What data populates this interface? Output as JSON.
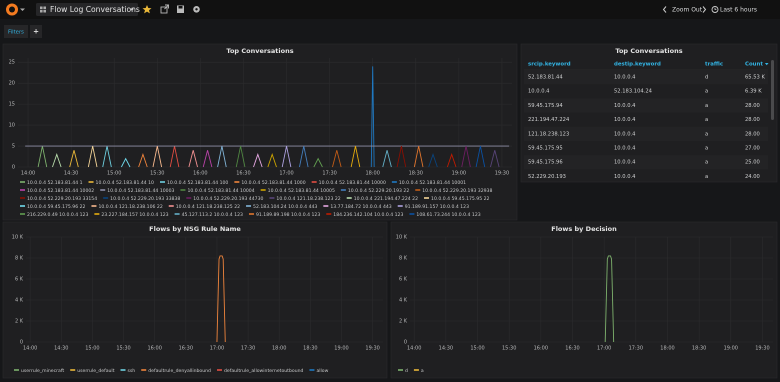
{
  "header": {
    "title": "Flow Log Conversations",
    "zoom_out": "Zoom Out",
    "time_range": "Last 6 hours"
  },
  "filters": {
    "label": "Filters",
    "add": "+"
  },
  "panels": [
    {
      "title": "Top Conversations",
      "type": "line",
      "xlim": [
        "13:53",
        "19:37"
      ],
      "xticks": [
        "14:00",
        "14:30",
        "15:00",
        "15:30",
        "16:00",
        "16:30",
        "17:00",
        "17:30",
        "18:00",
        "18:30",
        "19:00",
        "19:30"
      ],
      "ylim": [
        0,
        26
      ],
      "yticks": [
        0,
        5,
        10,
        15,
        20,
        25
      ],
      "grid": true,
      "series": [
        {
          "name": "10.0.0.4 52.183.81.44 1",
          "color": "#7EB26D",
          "x": [
            "14:07",
            "14:10",
            "14:13"
          ],
          "values": [
            0,
            5,
            0
          ]
        },
        {
          "name": "10.0.0.4 52.183.81.44 10",
          "color": "#EAB839",
          "x": [
            "14:29",
            "14:32",
            "14:35"
          ],
          "values": [
            0,
            4,
            0
          ]
        },
        {
          "name": "10.0.0.4 52.183.81.44 100",
          "color": "#6ED0E0",
          "x": [
            "14:52",
            "14:55",
            "14:58"
          ],
          "values": [
            0,
            5,
            0
          ]
        },
        {
          "name": "10.0.0.4 52.183.81.44 1000",
          "color": "#EF843C",
          "x": [
            "15:17",
            "15:20",
            "15:23"
          ],
          "values": [
            0,
            3,
            0
          ]
        },
        {
          "name": "10.0.0.4 52.183.81.44 10000",
          "color": "#E24D42",
          "x": [
            "15:39",
            "15:42",
            "15:45"
          ],
          "values": [
            0,
            5,
            0
          ]
        },
        {
          "name": "10.0.0.4 52.183.81.44 10001",
          "color": "#1F78C1",
          "x": [
            "17:59",
            "18:00",
            "18:01"
          ],
          "values": [
            0,
            24,
            0
          ]
        },
        {
          "name": "10.0.0.4 52.183.81.44 10002",
          "color": "#BA43A9",
          "x": [
            "16:02",
            "16:05",
            "16:08"
          ],
          "values": [
            0,
            4,
            0
          ]
        },
        {
          "name": "10.0.0.4 52.183.81.44 10003",
          "color": "#8F8FA8",
          "x": [
            "13:58",
            "19:35"
          ],
          "values": [
            5,
            5
          ]
        },
        {
          "name": "10.0.0.4 52.183.81.44 10004",
          "color": "#508642",
          "x": [
            "16:25",
            "16:28",
            "16:31"
          ],
          "values": [
            0,
            5,
            0
          ]
        },
        {
          "name": "10.0.0.4 52.183.81.44 10005",
          "color": "#CCA300",
          "x": [
            "16:47",
            "16:50",
            "16:53"
          ],
          "values": [
            0,
            3,
            0
          ]
        },
        {
          "name": "10.0.0.4 52.229.20.193 22",
          "color": "#447EBC",
          "x": [
            "17:09",
            "17:12",
            "17:15"
          ],
          "values": [
            0,
            5,
            0
          ]
        },
        {
          "name": "10.0.0.4 52.229.20.193 32938",
          "color": "#C15C17",
          "x": [
            "17:32",
            "17:35",
            "17:38"
          ],
          "values": [
            0,
            4,
            0
          ]
        },
        {
          "name": "10.0.0.4 52.229.20.193 33154",
          "color": "#890F02",
          "x": [
            "18:17",
            "18:20",
            "18:23"
          ],
          "values": [
            0,
            5,
            0
          ]
        },
        {
          "name": "10.0.0.4 52.229.20.193 33838",
          "color": "#0A437C",
          "x": [
            "18:39",
            "18:42",
            "18:45"
          ],
          "values": [
            0,
            3,
            0
          ]
        },
        {
          "name": "10.0.0.4 52.229.20.193 44730",
          "color": "#6D1F62",
          "x": [
            "19:02",
            "19:05",
            "19:08"
          ],
          "values": [
            0,
            5,
            0
          ]
        },
        {
          "name": "10.0.0.4 121.18.238.123 22",
          "color": "#584477",
          "x": [
            "19:22",
            "19:25",
            "19:28"
          ],
          "values": [
            0,
            4,
            0
          ]
        },
        {
          "name": "10.0.0.4 221.194.47.224 22",
          "color": "#B7DBAB",
          "x": [
            "14:17",
            "14:20",
            "14:23"
          ],
          "values": [
            0,
            3,
            0
          ]
        },
        {
          "name": "10.0.0.4 59.45.175.95 22",
          "color": "#F4D598",
          "x": [
            "14:42",
            "14:45",
            "14:48"
          ],
          "values": [
            0,
            5,
            0
          ]
        },
        {
          "name": "10.0.0.4 59.45.175.96 22",
          "color": "#70DBED",
          "x": [
            "15:05",
            "15:08",
            "15:11"
          ],
          "values": [
            0,
            2,
            0
          ]
        },
        {
          "name": "10.0.0.4 121.18.238.106 22",
          "color": "#F9BA8F",
          "x": [
            "15:27",
            "15:30",
            "15:33"
          ],
          "values": [
            0,
            5,
            0
          ]
        },
        {
          "name": "10.0.0.4 121.18.238.125 22",
          "color": "#F29191",
          "x": [
            "15:52",
            "15:55",
            "15:58"
          ],
          "values": [
            0,
            4,
            0
          ]
        },
        {
          "name": "52.183.104.24 10.0.0.4 443",
          "color": "#82B5D8",
          "x": [
            "16:12",
            "16:15",
            "16:18"
          ],
          "values": [
            0,
            5,
            0
          ]
        },
        {
          "name": "13.77.184.72 10.0.0.4 443",
          "color": "#E5A8E2",
          "x": [
            "16:37",
            "16:40",
            "16:43"
          ],
          "values": [
            0,
            3,
            0
          ]
        },
        {
          "name": "91.189.91.157 10.0.0.4 123",
          "color": "#AEA2E0",
          "x": [
            "16:57",
            "17:00",
            "17:03"
          ],
          "values": [
            0,
            5,
            0
          ]
        },
        {
          "name": "216.229.0.49 10.0.0.4 123",
          "color": "#629E51",
          "x": [
            "17:19",
            "17:22",
            "17:25"
          ],
          "values": [
            0,
            2,
            0
          ]
        },
        {
          "name": "23.227.184.157 10.0.0.4 123",
          "color": "#E5AC0E",
          "x": [
            "17:45",
            "17:48",
            "17:51"
          ],
          "values": [
            0,
            5,
            0
          ]
        },
        {
          "name": "45.127.113.2 10.0.0.4 123",
          "color": "#64B0C8",
          "x": [
            "18:07",
            "18:10",
            "18:13"
          ],
          "values": [
            0,
            4,
            0
          ]
        },
        {
          "name": "91.189.89.198 10.0.0.4 123",
          "color": "#E0752D",
          "x": [
            "18:29",
            "18:32",
            "18:35"
          ],
          "values": [
            0,
            5,
            0
          ]
        },
        {
          "name": "184.236.142.104 10.0.0.4 123",
          "color": "#BF1B00",
          "x": [
            "18:52",
            "18:55",
            "18:58"
          ],
          "values": [
            0,
            3,
            0
          ]
        },
        {
          "name": "108.61.73.244 10.0.0.4 123",
          "color": "#0A50A1",
          "x": [
            "19:12",
            "19:15",
            "19:18"
          ],
          "values": [
            0,
            5,
            0
          ]
        }
      ]
    },
    {
      "title": "Top Conversations",
      "type": "table",
      "columns": [
        "srcip.keyword",
        "destip.keyword",
        "traffic",
        "Count"
      ],
      "rows": [
        [
          "52.183.81.44",
          "10.0.0.4",
          "d",
          "65.53 K"
        ],
        [
          "10.0.0.4",
          "52.183.104.24",
          "a",
          "6.39 K"
        ],
        [
          "59.45.175.94",
          "10.0.0.4",
          "a",
          "28.00"
        ],
        [
          "221.194.47.224",
          "10.0.0.4",
          "a",
          "28.00"
        ],
        [
          "121.18.238.123",
          "10.0.0.4",
          "a",
          "28.00"
        ],
        [
          "59.45.175.95",
          "10.0.0.4",
          "a",
          "27.00"
        ],
        [
          "59.45.175.96",
          "10.0.0.4",
          "a",
          "25.00"
        ],
        [
          "52.229.20.193",
          "10.0.0.4",
          "a",
          "24.00"
        ]
      ]
    },
    {
      "title": "Flows by NSG Rule Name",
      "type": "line",
      "xlim": [
        "13:56",
        "19:40"
      ],
      "xticks": [
        "14:00",
        "14:30",
        "15:00",
        "15:30",
        "16:00",
        "16:30",
        "17:00",
        "17:30",
        "18:00",
        "18:30",
        "19:00",
        "19:30"
      ],
      "ylim": [
        0,
        10000
      ],
      "yticks": [
        0,
        {
          "value": 2000,
          "label": "2 K"
        },
        {
          "value": 4000,
          "label": "4 K"
        },
        {
          "value": 6000,
          "label": "6 K"
        },
        {
          "value": 8000,
          "label": "8 K"
        },
        {
          "value": 10000,
          "label": "10 K"
        }
      ],
      "grid": true,
      "series": [
        {
          "name": "userrule_minecraft",
          "color": "#7EB26D",
          "x": [],
          "values": []
        },
        {
          "name": "userrule_default",
          "color": "#EAB839",
          "x": [],
          "values": []
        },
        {
          "name": "ssh",
          "color": "#6ED0E0",
          "x": [],
          "values": []
        },
        {
          "name": "defaultrule_denyallinbound",
          "color": "#EF843C",
          "x": [
            "17:00",
            "17:02",
            "17:03",
            "17:05",
            "17:06",
            "17:08"
          ],
          "values": [
            0,
            7900,
            8200,
            8200,
            7900,
            0
          ]
        },
        {
          "name": "defaultrule_allowinternetoutbound",
          "color": "#E24D42",
          "x": [],
          "values": []
        },
        {
          "name": "allow",
          "color": "#1F78C1",
          "x": [],
          "values": []
        }
      ]
    },
    {
      "title": "Flows by Decision",
      "type": "line",
      "xlim": [
        "13:56",
        "19:40"
      ],
      "xticks": [
        "14:00",
        "14:30",
        "15:00",
        "15:30",
        "16:00",
        "16:30",
        "17:00",
        "17:30",
        "18:00",
        "18:30",
        "19:00",
        "19:30"
      ],
      "ylim": [
        0,
        10000
      ],
      "yticks": [
        0,
        {
          "value": 2000,
          "label": "2 K"
        },
        {
          "value": 4000,
          "label": "4 K"
        },
        {
          "value": 6000,
          "label": "6 K"
        },
        {
          "value": 8000,
          "label": "8 K"
        },
        {
          "value": 10000,
          "label": "10 K"
        }
      ],
      "grid": true,
      "series": [
        {
          "name": "d",
          "color": "#7EB26D",
          "x": [
            "17:01",
            "17:03",
            "17:04",
            "17:06",
            "17:07",
            "17:09"
          ],
          "values": [
            0,
            7900,
            8200,
            8200,
            7900,
            0
          ]
        },
        {
          "name": "a",
          "color": "#EAB839",
          "x": [],
          "values": []
        }
      ]
    }
  ]
}
